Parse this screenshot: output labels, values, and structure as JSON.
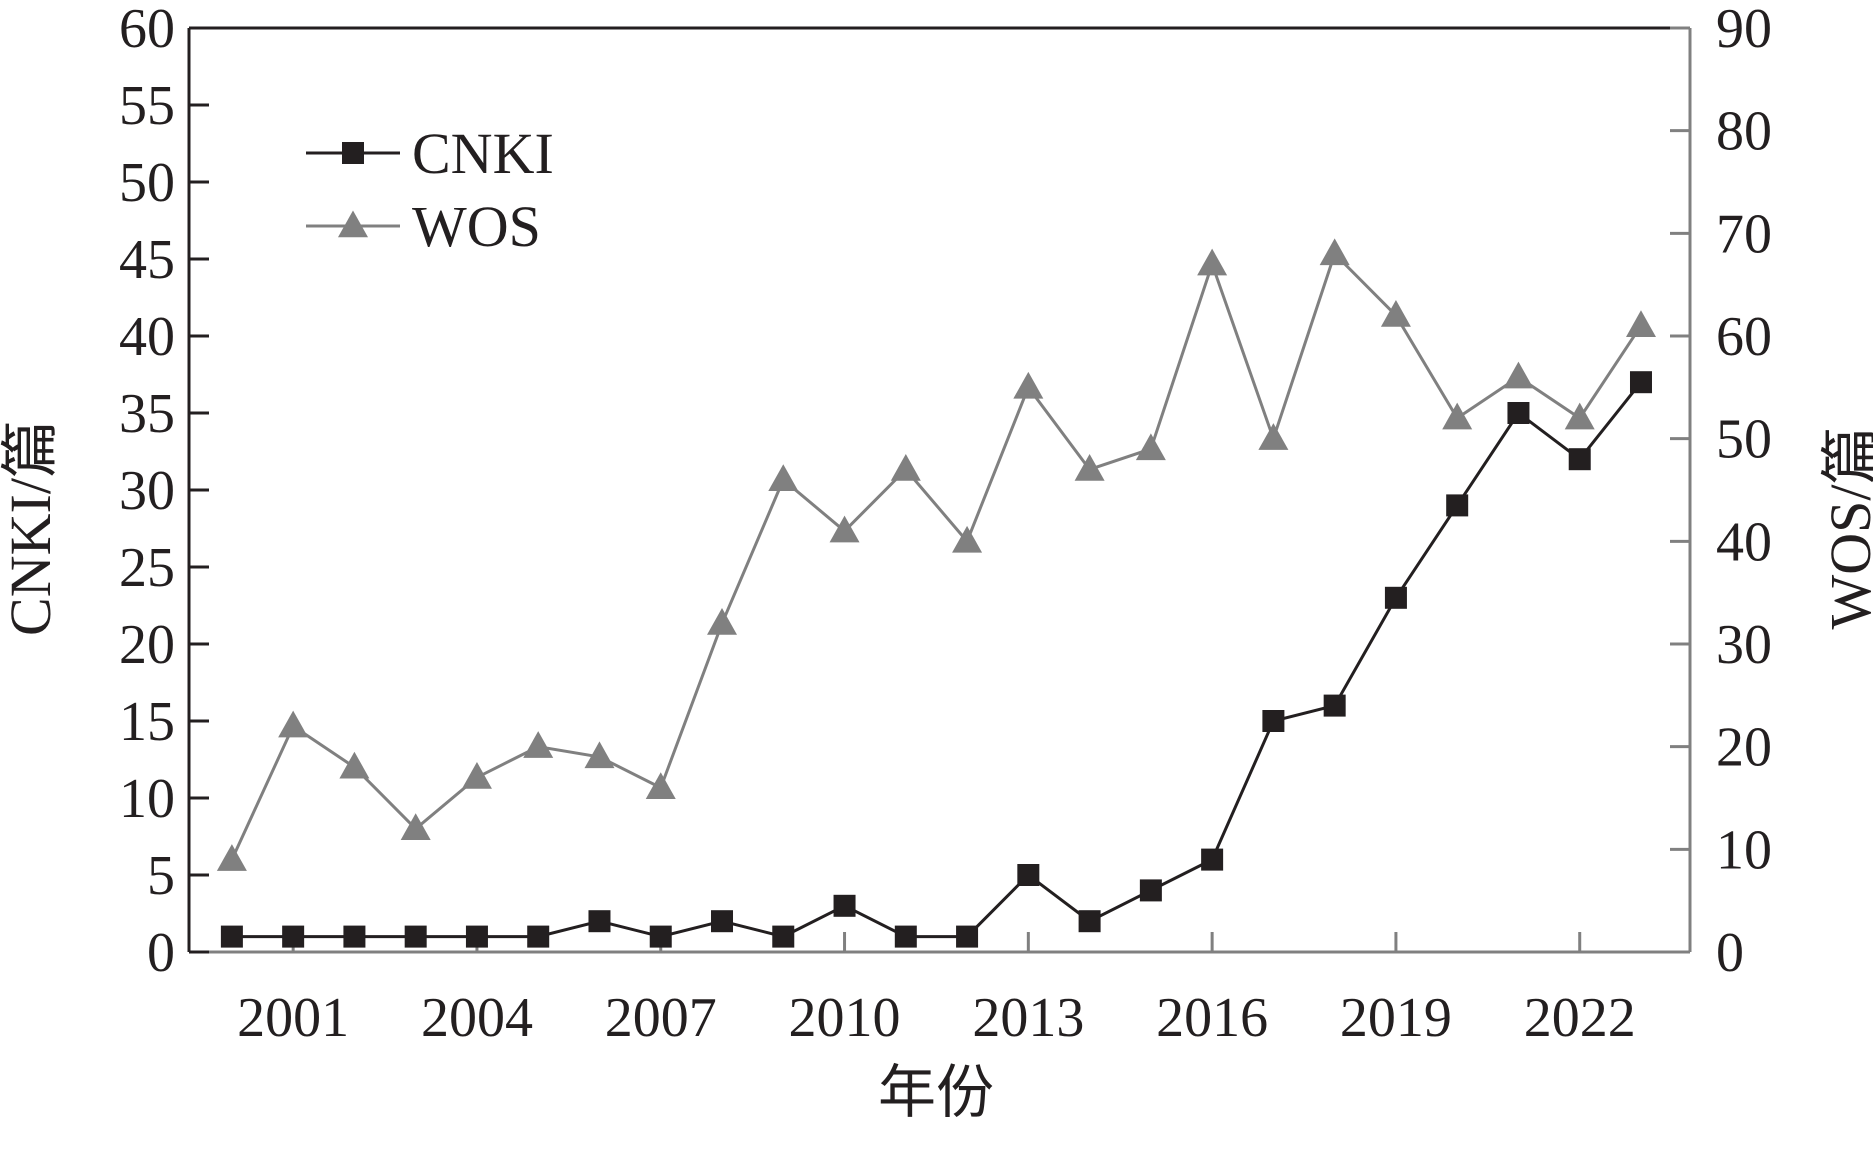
{
  "chart_data": {
    "type": "line",
    "title": "",
    "xlabel": "年份",
    "ylabel_left": "CNKI/篇",
    "ylabel_right": "WOS/篇",
    "x": [
      2000,
      2001,
      2002,
      2003,
      2004,
      2005,
      2006,
      2007,
      2008,
      2009,
      2010,
      2011,
      2012,
      2013,
      2014,
      2015,
      2016,
      2017,
      2018,
      2019,
      2020,
      2021,
      2022,
      2023
    ],
    "xlim": [
      1999.3,
      2023.8
    ],
    "x_ticks": [
      2001,
      2004,
      2007,
      2010,
      2013,
      2016,
      2019,
      2022
    ],
    "x_tick_labels": [
      "2001",
      "2004",
      "2007",
      "2010",
      "2013",
      "2016",
      "2019",
      "2022"
    ],
    "ylim_left": [
      0,
      60
    ],
    "y_ticks_left": [
      0,
      5,
      10,
      15,
      20,
      25,
      30,
      35,
      40,
      45,
      50,
      55,
      60
    ],
    "y_tick_labels_left": [
      "0",
      "5",
      "10",
      "15",
      "20",
      "25",
      "30",
      "35",
      "40",
      "45",
      "50",
      "55",
      "60"
    ],
    "ylim_right": [
      0,
      90
    ],
    "y_ticks_right": [
      0,
      10,
      20,
      30,
      40,
      50,
      60,
      70,
      80,
      90
    ],
    "y_tick_labels_right": [
      "0",
      "10",
      "20",
      "30",
      "40",
      "50",
      "60",
      "70",
      "80",
      "90"
    ],
    "grid": false,
    "legend_position": "top-left",
    "series": [
      {
        "name": "CNKI",
        "axis": "left",
        "marker": "square",
        "color": "#231f20",
        "values": [
          1,
          1,
          1,
          1,
          1,
          1,
          2,
          1,
          2,
          1,
          3,
          1,
          1,
          5,
          2,
          4,
          6,
          15,
          16,
          23,
          29,
          35,
          32,
          37
        ]
      },
      {
        "name": "WOS",
        "axis": "right",
        "marker": "triangle",
        "color": "#808080",
        "values": [
          9,
          22,
          18,
          12,
          17,
          20,
          19,
          16,
          32,
          46,
          41,
          47,
          40,
          55,
          47,
          49,
          67,
          50,
          68,
          62,
          52,
          56,
          52,
          61
        ]
      }
    ]
  },
  "colors": {
    "axis_left": "#231f20",
    "axis_right": "#808080",
    "text": "#231f20"
  }
}
